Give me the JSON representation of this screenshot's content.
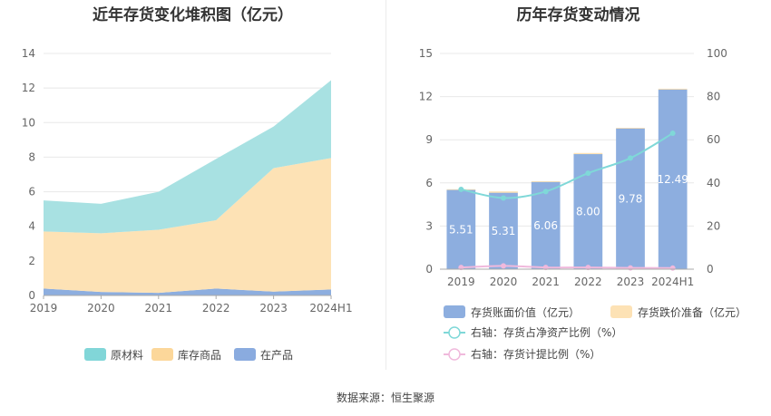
{
  "chart_data": [
    {
      "type": "area",
      "title": "近年存货变化堆积图（亿元）",
      "categories": [
        "2019",
        "2020",
        "2021",
        "2022",
        "2023",
        "2024H1"
      ],
      "ylim": [
        0,
        14
      ],
      "yticks": [
        0,
        2,
        4,
        6,
        8,
        10,
        12,
        14
      ],
      "stacked": true,
      "series": [
        {
          "name": "在产品",
          "values": [
            0.4,
            0.2,
            0.15,
            0.4,
            0.22,
            0.35
          ],
          "color": "#8daedf"
        },
        {
          "name": "库存商品",
          "values": [
            3.3,
            3.4,
            3.65,
            3.95,
            7.15,
            7.6
          ],
          "color": "#fde2b5"
        },
        {
          "name": "原材料",
          "values": [
            1.8,
            1.7,
            2.2,
            3.55,
            2.4,
            4.5
          ],
          "color": "#a8e1e2"
        }
      ],
      "legend": [
        "原材料",
        "库存商品",
        "在产品"
      ],
      "legend_colors": [
        "#81d6d8",
        "#fcd79a",
        "#8aabdf"
      ],
      "legend_position": "bottom",
      "grid": true
    },
    {
      "type": "bar",
      "title": "历年存货变动情况",
      "categories": [
        "2019",
        "2020",
        "2021",
        "2022",
        "2023",
        "2024H1"
      ],
      "ylim": [
        0,
        15
      ],
      "yticks": [
        0,
        3,
        6,
        9,
        12,
        15
      ],
      "y2lim": [
        0,
        100
      ],
      "y2ticks": [
        0,
        20,
        40,
        60,
        80,
        100
      ],
      "series": [
        {
          "name": "存货账面价值（亿元）",
          "values": [
            5.51,
            5.31,
            6.06,
            8.0,
            9.78,
            12.49
          ],
          "labels": [
            "5.51",
            "5.31",
            "6.06",
            "8.00",
            "9.78",
            "12.49"
          ],
          "color": "#8daedf",
          "axis": "left"
        },
        {
          "name": "存货跌价准备（亿元）",
          "values": [
            0.05,
            0.1,
            0.06,
            0.08,
            0.05,
            0.06
          ],
          "color": "#fde2b5",
          "axis": "left"
        },
        {
          "name": "右轴：存货占净资产比例（%）",
          "values": [
            37,
            33,
            36,
            44.5,
            51.5,
            63
          ],
          "color": "#7fd8d8",
          "axis": "right",
          "kind": "line"
        },
        {
          "name": "右轴：存货计提比例（%）",
          "values": [
            0.8,
            1.5,
            0.8,
            0.8,
            0.6,
            0.5
          ],
          "color": "#f0b9dc",
          "axis": "right",
          "kind": "line"
        }
      ],
      "legend_position": "bottom",
      "grid": true
    }
  ],
  "source": "数据来源：恒生聚源"
}
